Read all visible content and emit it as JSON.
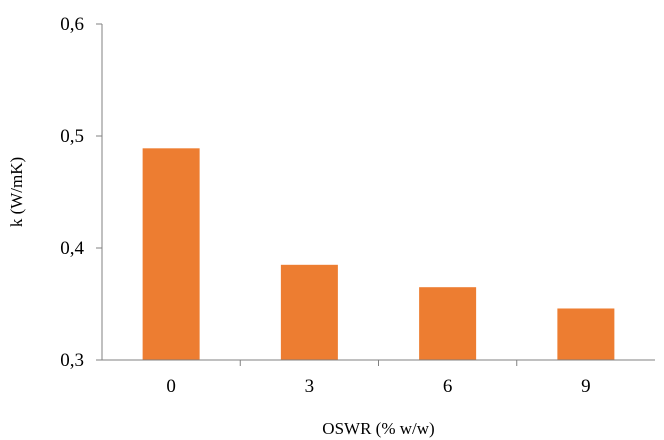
{
  "chart_data": {
    "type": "bar",
    "title": "",
    "xlabel": "OSWR (% w/w)",
    "ylabel": "k  (W/mK)",
    "categories": [
      "0",
      "3",
      "6",
      "9"
    ],
    "values": [
      0.489,
      0.385,
      0.365,
      0.346
    ],
    "ylim": [
      0.3,
      0.6
    ],
    "yticks": [
      "0,3",
      "0,4",
      "0,5",
      "0,6"
    ],
    "ytick_values": [
      0.3,
      0.4,
      0.5,
      0.6
    ],
    "bar_color": "#ED7D31",
    "grid": false,
    "legend": "none"
  }
}
